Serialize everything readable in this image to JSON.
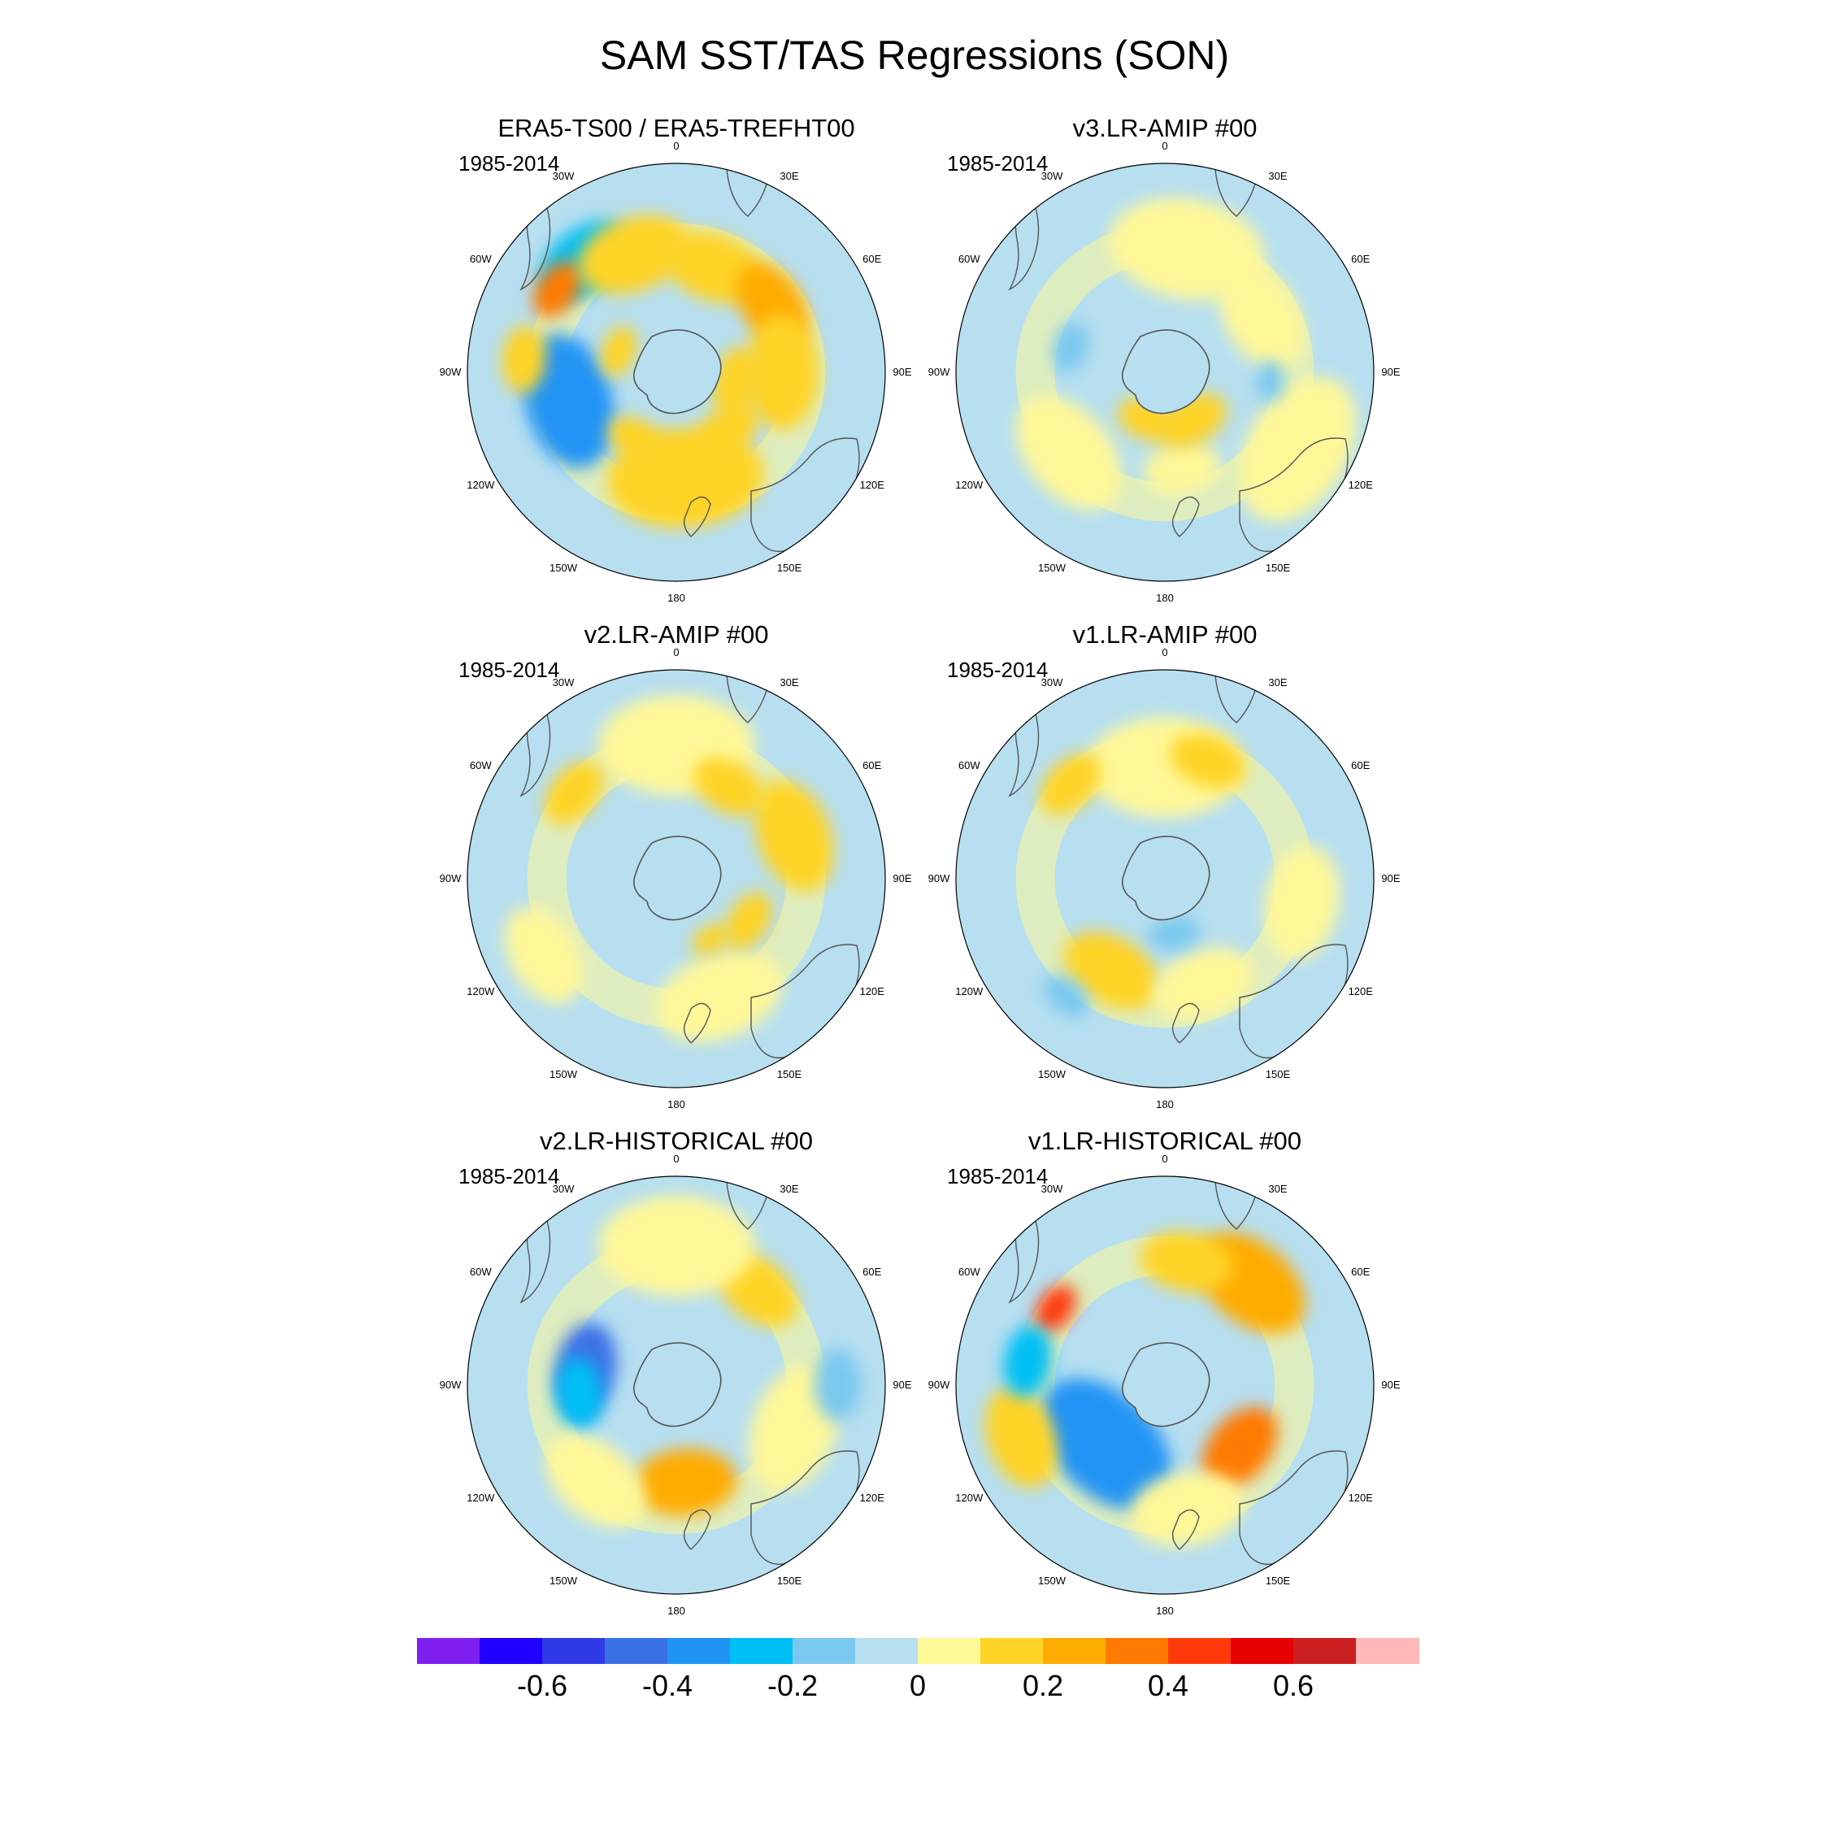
{
  "figure": {
    "title": "SAM SST/TAS Regressions (SON)"
  },
  "lon_labels": [
    "0",
    "30E",
    "60E",
    "90E",
    "120E",
    "150E",
    "180",
    "150W",
    "120W",
    "90W",
    "60W",
    "30W"
  ],
  "panels": [
    {
      "title": "ERA5-TS00 / ERA5-TREFHT00",
      "period": "1985-2014",
      "blobs": [
        {
          "lon": -40,
          "colat": 52,
          "size": 0.19,
          "value": -0.25
        },
        {
          "lon": -55,
          "colat": 52,
          "size": 0.12,
          "value": 0.3
        },
        {
          "lon": -20,
          "colat": 45,
          "size": 0.22,
          "value": 0.15
        },
        {
          "lon": 20,
          "colat": 40,
          "size": 0.2,
          "value": 0.12
        },
        {
          "lon": 55,
          "colat": 42,
          "size": 0.18,
          "value": 0.2
        },
        {
          "lon": 90,
          "colat": 38,
          "size": 0.22,
          "value": 0.12
        },
        {
          "lon": 100,
          "colat": 22,
          "size": 0.14,
          "value": 0.12
        },
        {
          "lon": -105,
          "colat": 40,
          "size": 0.26,
          "value": -0.38
        },
        {
          "lon": -85,
          "colat": 55,
          "size": 0.13,
          "value": 0.15
        },
        {
          "lon": -70,
          "colat": 22,
          "size": 0.1,
          "value": 0.12
        },
        {
          "lon": 175,
          "colat": 38,
          "size": 0.3,
          "value": 0.18
        },
        {
          "lon": 140,
          "colat": 28,
          "size": 0.14,
          "value": 0.12
        },
        {
          "lon": -150,
          "colat": 28,
          "size": 0.12,
          "value": 0.12
        }
      ]
    },
    {
      "title": "v3.LR-AMIP  #00",
      "period": "1985-2014",
      "blobs": [
        {
          "lon": 10,
          "colat": 45,
          "size": 0.3,
          "value": 0.05
        },
        {
          "lon": 60,
          "colat": 40,
          "size": 0.22,
          "value": 0.05
        },
        {
          "lon": 120,
          "colat": 55,
          "size": 0.3,
          "value": 0.05
        },
        {
          "lon": -130,
          "colat": 45,
          "size": 0.25,
          "value": 0.05
        },
        {
          "lon": 170,
          "colat": 35,
          "size": 0.15,
          "value": 0.05
        },
        {
          "lon": 150,
          "colat": 20,
          "size": 0.14,
          "value": 0.15
        },
        {
          "lon": -160,
          "colat": 18,
          "size": 0.12,
          "value": 0.12
        },
        {
          "lon": -75,
          "colat": 35,
          "size": 0.1,
          "value": -0.15
        },
        {
          "lon": 95,
          "colat": 38,
          "size": 0.08,
          "value": -0.15
        }
      ]
    },
    {
      "title": "v2.LR-AMIP  #00",
      "period": "1985-2014",
      "blobs": [
        {
          "lon": 0,
          "colat": 48,
          "size": 0.3,
          "value": 0.05
        },
        {
          "lon": 70,
          "colat": 45,
          "size": 0.22,
          "value": 0.15
        },
        {
          "lon": 30,
          "colat": 38,
          "size": 0.15,
          "value": 0.12
        },
        {
          "lon": -50,
          "colat": 48,
          "size": 0.14,
          "value": 0.12
        },
        {
          "lon": -120,
          "colat": 55,
          "size": 0.2,
          "value": 0.05
        },
        {
          "lon": 160,
          "colat": 45,
          "size": 0.25,
          "value": 0.05
        },
        {
          "lon": 150,
          "colat": 25,
          "size": 0.08,
          "value": 0.15
        },
        {
          "lon": 120,
          "colat": 30,
          "size": 0.12,
          "value": 0.12
        }
      ]
    },
    {
      "title": "v1.LR-AMIP  #00",
      "period": "1985-2014",
      "blobs": [
        {
          "lon": 0,
          "colat": 40,
          "size": 0.3,
          "value": 0.05
        },
        {
          "lon": 20,
          "colat": 45,
          "size": 0.15,
          "value": 0.15
        },
        {
          "lon": -45,
          "colat": 48,
          "size": 0.14,
          "value": 0.15
        },
        {
          "lon": 100,
          "colat": 50,
          "size": 0.22,
          "value": 0.05
        },
        {
          "lon": -150,
          "colat": 38,
          "size": 0.2,
          "value": 0.12
        },
        {
          "lon": -140,
          "colat": 55,
          "size": 0.1,
          "value": -0.15
        },
        {
          "lon": 160,
          "colat": 40,
          "size": 0.2,
          "value": 0.05
        },
        {
          "lon": 170,
          "colat": 20,
          "size": 0.1,
          "value": -0.15
        }
      ]
    },
    {
      "title": "v2.LR-HISTORICAL  #00",
      "period": "1985-2014",
      "blobs": [
        {
          "lon": -80,
          "colat": 33,
          "size": 0.18,
          "value": -0.45
        },
        {
          "lon": -95,
          "colat": 35,
          "size": 0.14,
          "value": -0.3
        },
        {
          "lon": 175,
          "colat": 35,
          "size": 0.2,
          "value": 0.2
        },
        {
          "lon": 40,
          "colat": 45,
          "size": 0.18,
          "value": 0.15
        },
        {
          "lon": 0,
          "colat": 50,
          "size": 0.3,
          "value": 0.05
        },
        {
          "lon": 110,
          "colat": 45,
          "size": 0.25,
          "value": 0.05
        },
        {
          "lon": -140,
          "colat": 45,
          "size": 0.22,
          "value": 0.05
        },
        {
          "lon": 90,
          "colat": 58,
          "size": 0.14,
          "value": -0.15
        }
      ]
    },
    {
      "title": "v1.LR-HISTORICAL  #00",
      "period": "1985-2014",
      "blobs": [
        {
          "lon": -135,
          "colat": 30,
          "size": 0.3,
          "value": -0.4
        },
        {
          "lon": 40,
          "colat": 48,
          "size": 0.24,
          "value": 0.2
        },
        {
          "lon": 10,
          "colat": 45,
          "size": 0.18,
          "value": 0.15
        },
        {
          "lon": -55,
          "colat": 48,
          "size": 0.1,
          "value": 0.4
        },
        {
          "lon": 130,
          "colat": 35,
          "size": 0.18,
          "value": 0.3
        },
        {
          "lon": -110,
          "colat": 55,
          "size": 0.2,
          "value": 0.12
        },
        {
          "lon": 170,
          "colat": 45,
          "size": 0.22,
          "value": 0.05
        },
        {
          "lon": -80,
          "colat": 50,
          "size": 0.14,
          "value": -0.3
        }
      ]
    }
  ],
  "chart_data": {
    "type": "heatmap",
    "title": "SAM SST/TAS Regressions (SON)",
    "projection": "south polar stereographic",
    "levels": [
      -0.7,
      -0.6,
      -0.5,
      -0.4,
      -0.3,
      -0.2,
      -0.1,
      0,
      0.1,
      0.2,
      0.3,
      0.4,
      0.5,
      0.6,
      0.7
    ],
    "colors": [
      "#7f1fef",
      "#1f00ff",
      "#2e3be6",
      "#3a72e6",
      "#2094f5",
      "#00bff5",
      "#7ac8ef",
      "#b7dff0",
      "#fff899",
      "#ffd426",
      "#ffac00",
      "#ff7a00",
      "#ff3a0a",
      "#e60000",
      "#cc2020",
      "#ffb9b9"
    ],
    "colorbar_ticks": [
      "-0.6",
      "-0.4",
      "-0.2",
      "0",
      "0.2",
      "0.4",
      "0.6"
    ],
    "colorbar_tick_values": [
      -0.6,
      -0.4,
      -0.2,
      0,
      0.2,
      0.4,
      0.6
    ]
  }
}
